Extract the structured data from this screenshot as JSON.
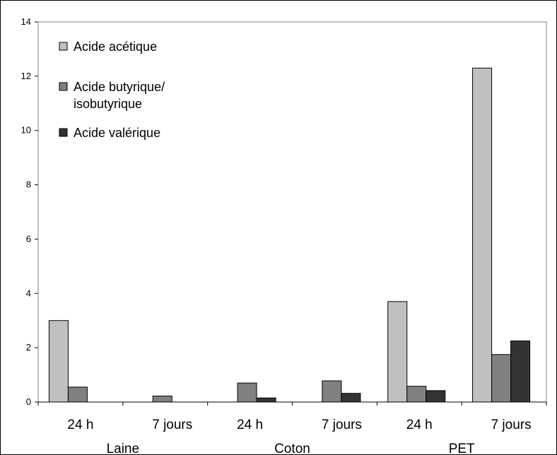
{
  "chart_data": {
    "type": "bar",
    "ylim": [
      0,
      14
    ],
    "yticks": [
      0,
      2,
      4,
      6,
      8,
      10,
      12,
      14
    ],
    "grid": false,
    "legend_position": "top-left",
    "groups": [
      "Laine",
      "Coton",
      "PET"
    ],
    "subcategories": [
      "24 h",
      "7 jours",
      "24 h",
      "7 jours",
      "24 h",
      "7 jours"
    ],
    "series": [
      {
        "name": "Acide acétique",
        "color": "#c0c0c0",
        "values": [
          3.0,
          0,
          0,
          0,
          3.7,
          12.3
        ]
      },
      {
        "name": "Acide butyrique/ isobutyrique",
        "name_lines": [
          "Acide butyrique/",
          "isobutyrique"
        ],
        "color": "#808080",
        "values": [
          0.55,
          0.22,
          0.7,
          0.78,
          0.58,
          1.75
        ]
      },
      {
        "name": "Acide valérique",
        "color": "#333333",
        "values": [
          0,
          0,
          0.15,
          0.32,
          0.42,
          2.25
        ]
      }
    ]
  }
}
